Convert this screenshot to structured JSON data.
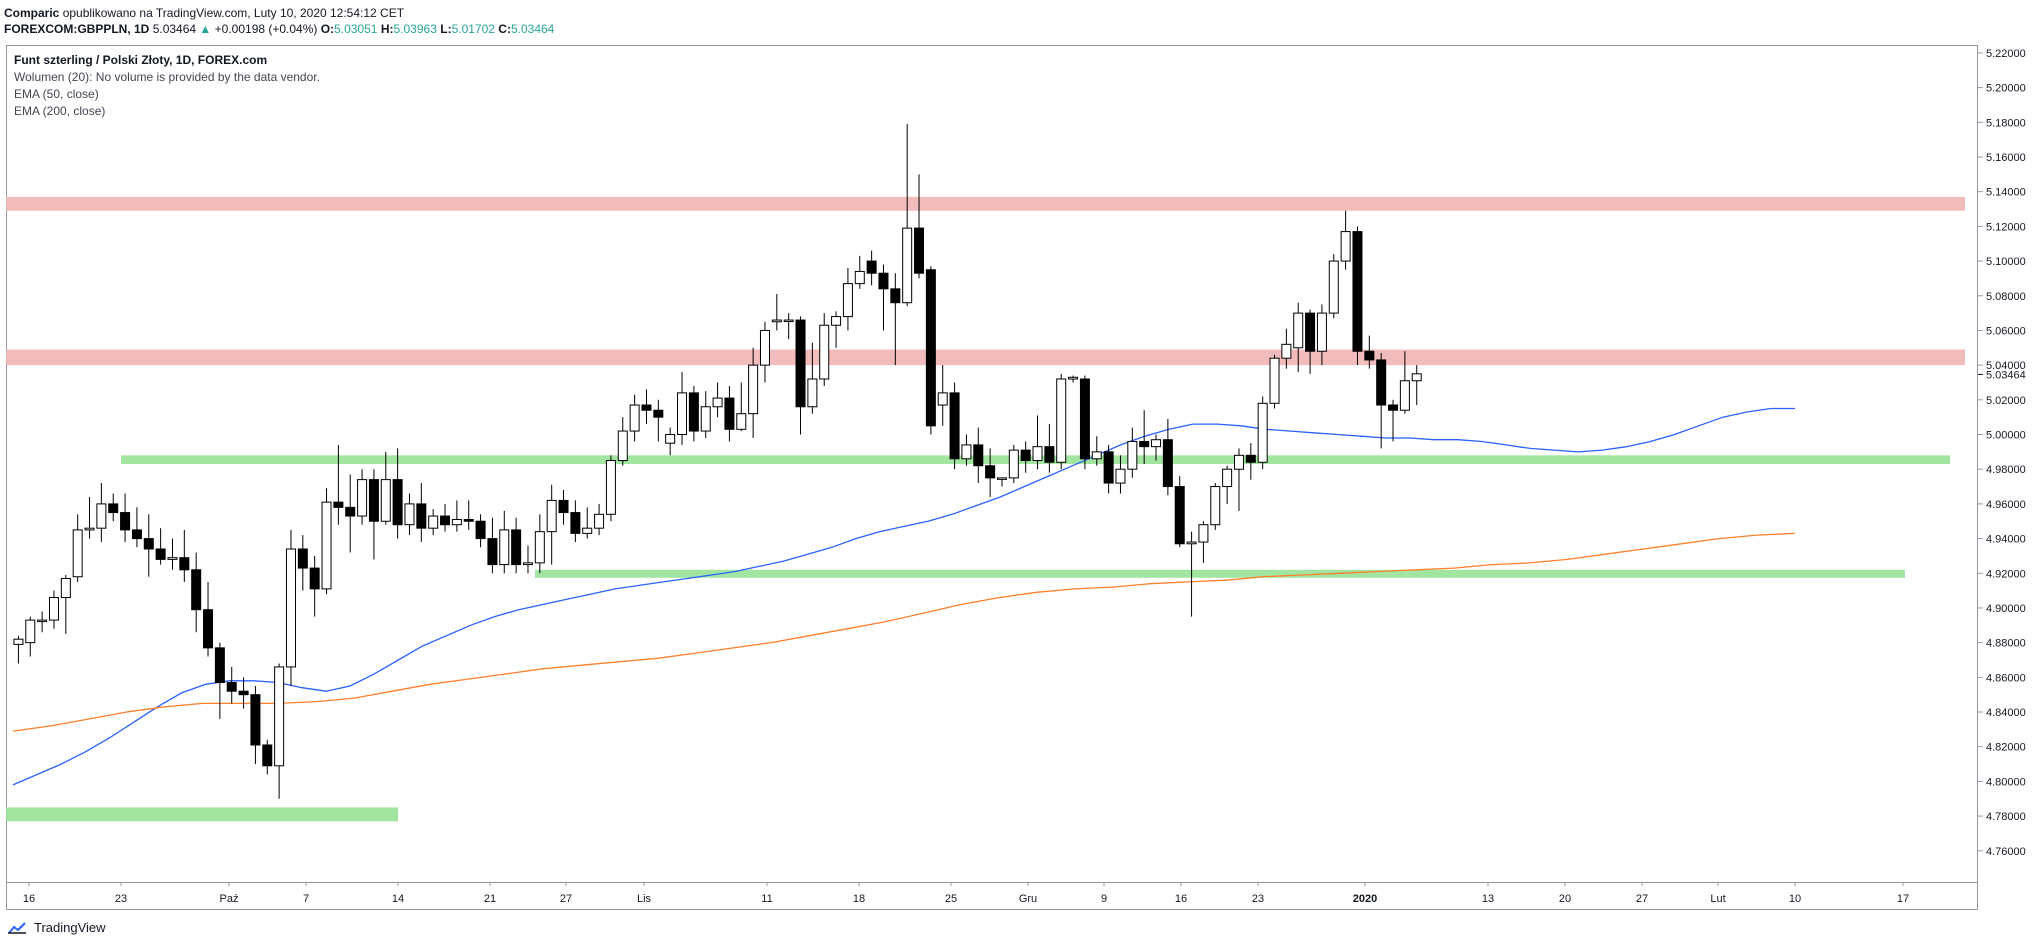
{
  "header": {
    "author": "Comparic",
    "published": "opublikowano na TradingView.com, Luty 10, 2020 12:54:12 CET",
    "symbol": "FOREXCOM:GBPPLN, 1D",
    "price": "5.03464",
    "change": "+0.00198 (+0.04%)",
    "o_label": "O:",
    "o": "5.03051",
    "h_label": "H:",
    "h": "5.03963",
    "l_label": "L:",
    "l": "5.01702",
    "c_label": "C:",
    "c": "5.03464"
  },
  "legend": {
    "title": "Funt szterling / Polski Złoty, 1D, FOREX.com",
    "volume": "Wolumen (20): No volume is provided by the data vendor.",
    "ema50": "EMA (50, close)",
    "ema200": "EMA (200, close)"
  },
  "footer": {
    "brand": "TradingView"
  },
  "colors": {
    "up_candle": "#ffffff",
    "down_candle": "#000000",
    "ema50": "#2962ff",
    "ema200": "#ff7f2a",
    "resistance": "#f0b0b0",
    "support": "#90e090",
    "last_price_label": "#131722"
  },
  "chart_data": {
    "type": "candlestick",
    "y_ticks": [
      "5.22000",
      "5.20000",
      "5.18000",
      "5.16000",
      "5.14000",
      "5.12000",
      "5.10000",
      "5.08000",
      "5.06000",
      "5.04000",
      "5.02000",
      "5.00000",
      "4.98000",
      "4.96000",
      "4.94000",
      "4.92000",
      "4.90000",
      "4.88000",
      "4.86000",
      "4.84000",
      "4.82000",
      "4.80000",
      "4.78000",
      "4.76000"
    ],
    "ylim": [
      4.742,
      5.224
    ],
    "last_price": "5.03464",
    "x_ticks": [
      "16",
      "23",
      "Paź",
      "7",
      "14",
      "21",
      "27",
      "Lis",
      "11",
      "18",
      "25",
      "Gru",
      "9",
      "16",
      "23",
      "2020",
      "13",
      "20",
      "27",
      "Lut",
      "10",
      "17"
    ],
    "candles": [
      [
        4.879,
        4.882,
        4.868,
        4.884
      ],
      [
        4.88,
        4.893,
        4.872,
        4.895
      ],
      [
        4.893,
        4.893,
        4.886,
        4.898
      ],
      [
        4.893,
        4.906,
        4.888,
        4.91
      ],
      [
        4.906,
        4.917,
        4.885,
        4.919
      ],
      [
        4.918,
        4.945,
        4.915,
        4.954
      ],
      [
        4.945,
        4.946,
        4.94,
        4.964
      ],
      [
        4.946,
        4.96,
        4.938,
        4.972
      ],
      [
        4.96,
        4.955,
        4.95,
        4.966
      ],
      [
        4.955,
        4.945,
        4.938,
        4.966
      ],
      [
        4.945,
        4.94,
        4.935,
        4.958
      ],
      [
        4.94,
        4.934,
        4.918,
        4.954
      ],
      [
        4.934,
        4.928,
        4.925,
        4.946
      ],
      [
        4.928,
        4.929,
        4.922,
        4.94
      ],
      [
        4.929,
        4.922,
        4.915,
        4.945
      ],
      [
        4.922,
        4.899,
        4.886,
        4.932
      ],
      [
        4.899,
        4.877,
        4.872,
        4.915
      ],
      [
        4.877,
        4.857,
        4.836,
        4.88
      ],
      [
        4.857,
        4.852,
        4.845,
        4.866
      ],
      [
        4.852,
        4.85,
        4.842,
        4.86
      ],
      [
        4.85,
        4.821,
        4.81,
        4.855
      ],
      [
        4.821,
        4.809,
        4.804,
        4.824
      ],
      [
        4.809,
        4.866,
        4.79,
        4.868
      ],
      [
        4.866,
        4.934,
        4.855,
        4.945
      ],
      [
        4.934,
        4.923,
        4.91,
        4.942
      ],
      [
        4.923,
        4.911,
        4.895,
        4.93
      ],
      [
        4.911,
        4.961,
        4.908,
        4.969
      ],
      [
        4.961,
        4.958,
        4.948,
        4.994
      ],
      [
        4.958,
        4.953,
        4.932,
        4.977
      ],
      [
        4.953,
        4.974,
        4.948,
        4.98
      ],
      [
        4.974,
        4.95,
        4.928,
        4.98
      ],
      [
        4.95,
        4.974,
        4.948,
        4.99
      ],
      [
        4.974,
        4.948,
        4.94,
        4.992
      ],
      [
        4.948,
        4.96,
        4.942,
        4.966
      ],
      [
        4.96,
        4.946,
        4.938,
        4.972
      ],
      [
        4.946,
        4.953,
        4.942,
        4.957
      ],
      [
        4.953,
        4.948,
        4.944,
        4.96
      ],
      [
        4.948,
        4.951,
        4.944,
        4.962
      ],
      [
        4.951,
        4.95,
        4.945,
        4.962
      ],
      [
        4.95,
        4.94,
        4.935,
        4.954
      ],
      [
        4.94,
        4.925,
        4.92,
        4.952
      ],
      [
        4.925,
        4.945,
        4.92,
        4.956
      ],
      [
        4.945,
        4.925,
        4.92,
        4.952
      ],
      [
        4.925,
        4.926,
        4.92,
        4.936
      ],
      [
        4.926,
        4.944,
        4.92,
        4.954
      ],
      [
        4.944,
        4.962,
        4.925,
        4.971
      ],
      [
        4.962,
        4.955,
        4.948,
        4.968
      ],
      [
        4.955,
        4.943,
        4.938,
        4.962
      ],
      [
        4.943,
        4.946,
        4.94,
        4.958
      ],
      [
        4.946,
        4.954,
        4.942,
        4.96
      ],
      [
        4.954,
        4.985,
        4.95,
        4.988
      ],
      [
        4.985,
        5.002,
        4.982,
        5.01
      ],
      [
        5.002,
        5.017,
        4.996,
        5.023
      ],
      [
        5.017,
        5.014,
        5.006,
        5.026
      ],
      [
        5.014,
        5.01,
        4.996,
        5.02
      ],
      [
        4.995,
        5.0,
        4.988,
        5.004
      ],
      [
        5.0,
        5.024,
        4.994,
        5.036
      ],
      [
        5.024,
        5.002,
        4.996,
        5.028
      ],
      [
        5.002,
        5.016,
        4.998,
        5.025
      ],
      [
        5.016,
        5.021,
        5.01,
        5.03
      ],
      [
        5.021,
        5.003,
        4.996,
        5.028
      ],
      [
        5.003,
        5.012,
        5.002,
        5.03
      ],
      [
        5.012,
        5.04,
        4.998,
        5.05
      ],
      [
        5.04,
        5.06,
        5.03,
        5.065
      ],
      [
        5.065,
        5.066,
        5.06,
        5.081
      ],
      [
        5.066,
        5.066,
        5.055,
        5.07
      ],
      [
        5.066,
        5.016,
        5.0,
        5.068
      ],
      [
        5.016,
        5.032,
        5.012,
        5.053
      ],
      [
        5.032,
        5.063,
        5.028,
        5.07
      ],
      [
        5.063,
        5.068,
        5.05,
        5.071
      ],
      [
        5.068,
        5.087,
        5.06,
        5.096
      ],
      [
        5.087,
        5.094,
        5.084,
        5.103
      ],
      [
        5.1,
        5.093,
        5.086,
        5.106
      ],
      [
        5.093,
        5.084,
        5.06,
        5.098
      ],
      [
        5.084,
        5.076,
        5.04,
        5.093
      ],
      [
        5.076,
        5.119,
        5.074,
        5.179
      ],
      [
        5.119,
        5.093,
        5.09,
        5.15
      ],
      [
        5.095,
        5.005,
        5.0,
        5.097
      ],
      [
        5.017,
        5.024,
        5.005,
        5.04
      ],
      [
        5.024,
        4.986,
        4.98,
        5.03
      ],
      [
        4.986,
        4.994,
        4.982,
        5.0
      ],
      [
        4.994,
        4.982,
        4.972,
        5.004
      ],
      [
        4.982,
        4.975,
        4.964,
        4.992
      ],
      [
        4.975,
        4.975,
        4.97,
        4.975
      ],
      [
        4.975,
        4.991,
        4.972,
        4.994
      ],
      [
        4.991,
        4.985,
        4.978,
        4.996
      ],
      [
        4.985,
        4.993,
        4.98,
        5.011
      ],
      [
        4.993,
        4.984,
        4.978,
        5.006
      ],
      [
        4.984,
        5.032,
        4.98,
        5.035
      ],
      [
        5.032,
        5.033,
        5.03,
        5.034
      ],
      [
        5.032,
        4.986,
        4.98,
        5.034
      ],
      [
        4.986,
        4.99,
        4.982,
        4.999
      ],
      [
        4.99,
        4.972,
        4.966,
        4.994
      ],
      [
        4.972,
        4.98,
        4.966,
        4.988
      ],
      [
        4.98,
        4.996,
        4.975,
        5.004
      ],
      [
        4.996,
        4.993,
        4.983,
        5.014
      ],
      [
        4.993,
        4.997,
        4.985,
        5.0
      ],
      [
        4.997,
        4.97,
        4.965,
        5.009
      ],
      [
        4.97,
        4.937,
        4.935,
        4.976
      ],
      [
        4.937,
        4.938,
        4.895,
        4.944
      ],
      [
        4.938,
        4.948,
        4.926,
        4.95
      ],
      [
        4.948,
        4.97,
        4.945,
        4.972
      ],
      [
        4.97,
        4.98,
        4.96,
        4.982
      ],
      [
        4.98,
        4.988,
        4.956,
        4.992
      ],
      [
        4.988,
        4.984,
        4.974,
        4.995
      ],
      [
        4.984,
        5.018,
        4.98,
        5.022
      ],
      [
        5.018,
        5.044,
        5.015,
        5.046
      ],
      [
        5.044,
        5.052,
        5.038,
        5.061
      ],
      [
        5.05,
        5.07,
        5.036,
        5.076
      ],
      [
        5.07,
        5.048,
        5.035,
        5.072
      ],
      [
        5.048,
        5.07,
        5.04,
        5.075
      ],
      [
        5.07,
        5.1,
        5.067,
        5.104
      ],
      [
        5.1,
        5.117,
        5.095,
        5.129
      ],
      [
        5.117,
        5.048,
        5.04,
        5.12
      ],
      [
        5.048,
        5.043,
        5.038,
        5.057
      ],
      [
        5.043,
        5.017,
        4.992,
        5.047
      ],
      [
        5.017,
        5.014,
        4.996,
        5.02
      ],
      [
        5.014,
        5.031,
        5.012,
        5.048
      ],
      [
        5.031,
        5.035,
        5.017,
        5.04
      ]
    ],
    "ema50": [
      4.798,
      4.804,
      4.81,
      4.817,
      4.825,
      4.834,
      4.843,
      4.851,
      4.856,
      4.858,
      4.858,
      4.857,
      4.854,
      4.852,
      4.855,
      4.862,
      4.87,
      4.878,
      4.884,
      4.89,
      4.895,
      4.899,
      4.902,
      4.905,
      4.908,
      4.911,
      4.913,
      4.915,
      4.917,
      4.919,
      4.921,
      4.924,
      4.927,
      4.931,
      4.935,
      4.94,
      4.944,
      4.947,
      4.95,
      4.954,
      4.959,
      4.964,
      4.97,
      4.976,
      4.982,
      4.988,
      4.994,
      4.999,
      5.003,
      5.006,
      5.006,
      5.005,
      5.003,
      5.002,
      5.001,
      5.0,
      4.999,
      4.998,
      4.998,
      4.997,
      4.997,
      4.996,
      4.994,
      4.992,
      4.991,
      4.99,
      4.991,
      4.993,
      4.996,
      5.0,
      5.005,
      5.01,
      5.013,
      5.015,
      5.015
    ],
    "ema200": [
      4.829,
      4.832,
      4.836,
      4.84,
      4.843,
      4.845,
      4.845,
      4.845,
      4.846,
      4.848,
      4.852,
      4.856,
      4.859,
      4.862,
      4.865,
      4.867,
      4.869,
      4.871,
      4.874,
      4.877,
      4.88,
      4.884,
      4.888,
      4.892,
      4.897,
      4.902,
      4.906,
      4.909,
      4.911,
      4.912,
      4.914,
      4.915,
      4.916,
      4.918,
      4.919,
      4.92,
      4.921,
      4.922,
      4.923,
      4.925,
      4.926,
      4.928,
      4.931,
      4.934,
      4.937,
      4.94,
      4.942,
      4.943
    ],
    "levels": [
      {
        "kind": "resistance",
        "low": 5.129,
        "high": 5.137
      },
      {
        "kind": "resistance",
        "low": 5.04,
        "high": 5.049
      },
      {
        "kind": "support",
        "low": 4.983,
        "high": 4.988
      },
      {
        "kind": "support",
        "low": 4.919,
        "high": 4.922
      },
      {
        "kind": "support",
        "low": 4.777,
        "high": 4.785
      }
    ]
  }
}
